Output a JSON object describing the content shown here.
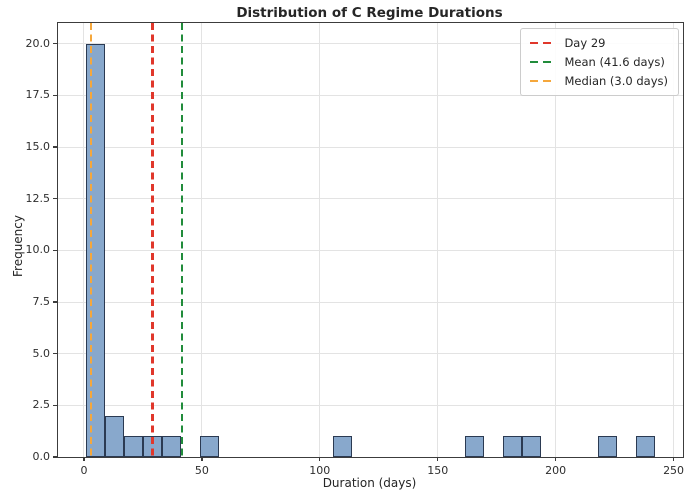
{
  "chart_data": {
    "type": "bar",
    "subtype": "histogram",
    "title": "Distribution of C Regime Durations",
    "xlabel": "Duration (days)",
    "ylabel": "Frequency",
    "xlim": [
      -11,
      254
    ],
    "ylim": [
      0,
      21
    ],
    "xticks": [
      0,
      50,
      100,
      150,
      200,
      250
    ],
    "xtick_labels": [
      "0",
      "50",
      "100",
      "150",
      "200",
      "250"
    ],
    "yticks": [
      0,
      2.5,
      5,
      7.5,
      10,
      12.5,
      15,
      17.5,
      20
    ],
    "ytick_labels": [
      "0.0",
      "2.5",
      "5.0",
      "7.5",
      "10.0",
      "12.5",
      "15.0",
      "17.5",
      "20.0"
    ],
    "grid": true,
    "legend_position": "upper right",
    "bins": [
      {
        "range": [
          1.0,
          9.03
        ],
        "frequency": 20
      },
      {
        "range": [
          9.03,
          17.07
        ],
        "frequency": 2
      },
      {
        "range": [
          17.07,
          25.1
        ],
        "frequency": 1
      },
      {
        "range": [
          25.1,
          33.13
        ],
        "frequency": 1
      },
      {
        "range": [
          33.13,
          41.17
        ],
        "frequency": 1
      },
      {
        "range": [
          49.2,
          57.23
        ],
        "frequency": 1
      },
      {
        "range": [
          105.43,
          113.47
        ],
        "frequency": 1
      },
      {
        "range": [
          161.67,
          169.7
        ],
        "frequency": 1
      },
      {
        "range": [
          177.73,
          185.77
        ],
        "frequency": 1
      },
      {
        "range": [
          185.77,
          193.8
        ],
        "frequency": 1
      },
      {
        "range": [
          217.9,
          225.93
        ],
        "frequency": 1
      },
      {
        "range": [
          233.97,
          242.0
        ],
        "frequency": 1
      }
    ],
    "vlines": [
      {
        "label": "Day 29",
        "x": 29,
        "color": "#e0372b"
      },
      {
        "label": "Mean (41.6 days)",
        "x": 41.6,
        "color": "#218c3b"
      },
      {
        "label": "Median (3.0 days)",
        "x": 3.0,
        "color": "#f5a73c"
      }
    ],
    "colors": {
      "bar_fill": "#88a8cc",
      "bar_edge": "#2b3a52",
      "grid": "#e3e3e3",
      "spine": "#3c3c3c",
      "text": "#262626",
      "background": "#ffffff"
    }
  }
}
